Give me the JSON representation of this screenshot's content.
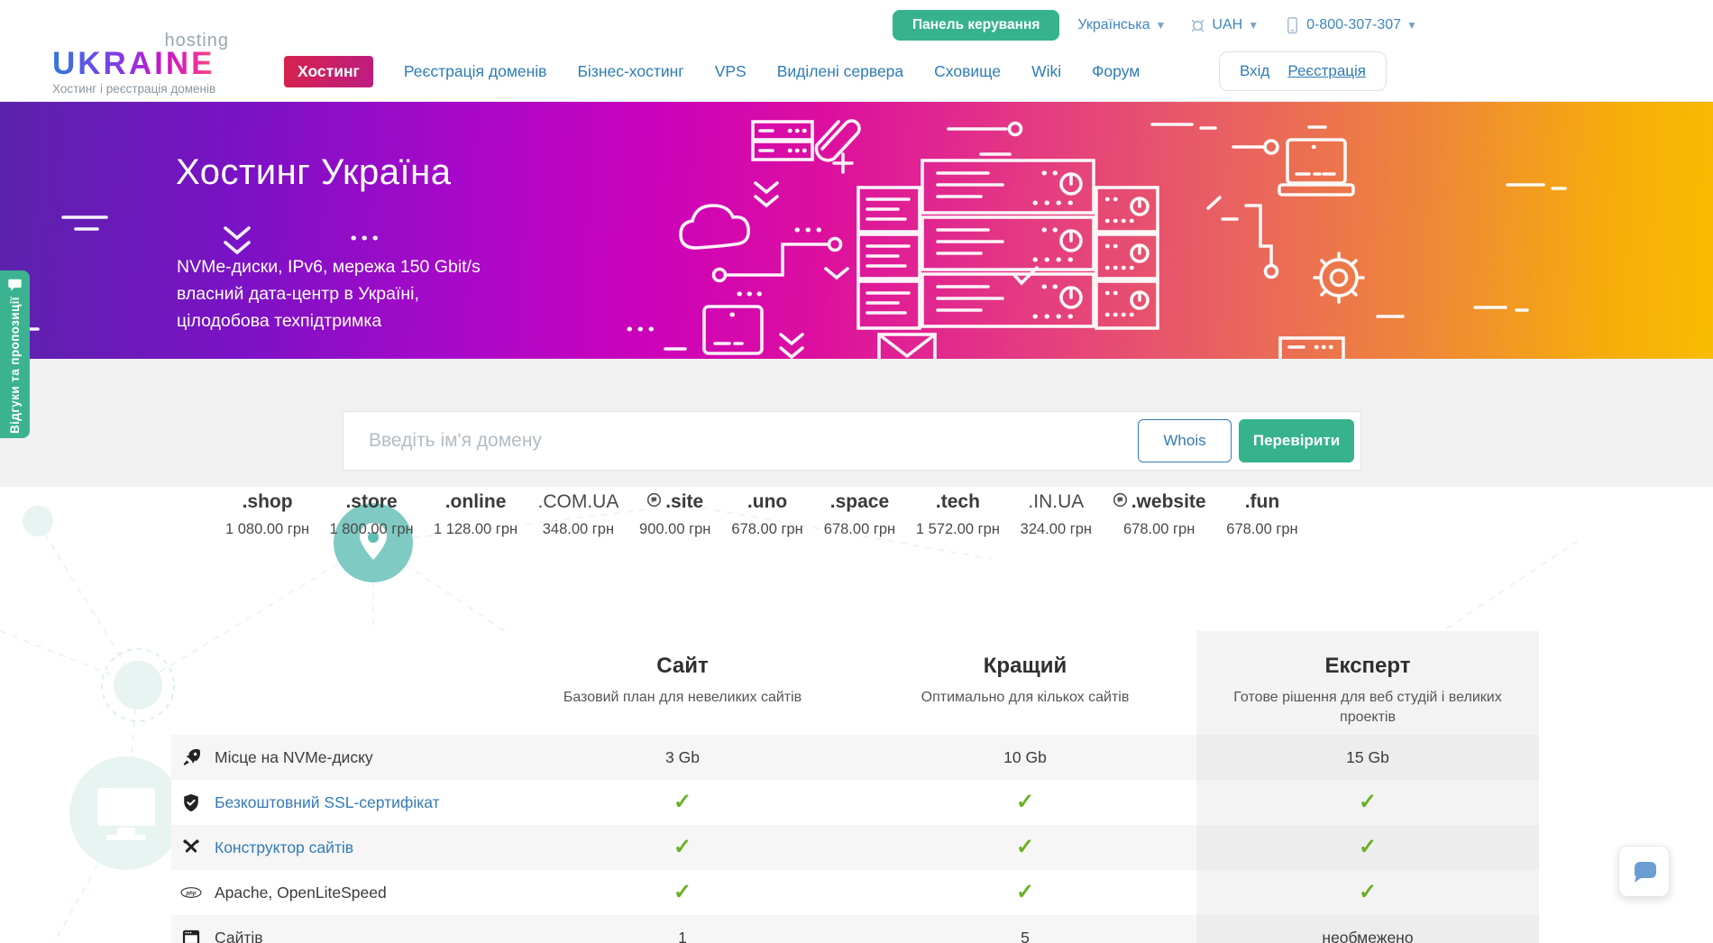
{
  "header": {
    "logo": {
      "top": "hosting",
      "name": "UKRAINE",
      "tagline": "Хостинг і реєстрація доменів"
    },
    "panel_button": "Панель керування",
    "language": "Українська",
    "currency": "UAH",
    "phone": "0-800-307-307",
    "login": "Вхід",
    "register": "Реєстрація",
    "nav": [
      {
        "label": "Хостинг",
        "active": true
      },
      {
        "label": "Реєстрація доменів",
        "active": false
      },
      {
        "label": "Бізнес-хостинг",
        "active": false
      },
      {
        "label": "VPS",
        "active": false
      },
      {
        "label": "Виділені сервера",
        "active": false
      },
      {
        "label": "Сховище",
        "active": false
      },
      {
        "label": "Wiki",
        "active": false
      },
      {
        "label": "Форум",
        "active": false
      }
    ]
  },
  "hero": {
    "title": "Хостинг Україна",
    "line1": "NVMe-диски, IPv6, мережа 150 Gbit/s",
    "line2": "власний дата-центр в Україні,",
    "line3": "цілодобова техпідтримка"
  },
  "feedback_tab": {
    "label": "Відгуки та пропозиції"
  },
  "search": {
    "placeholder": "Введіть ім'я домену",
    "whois_label": "Whois",
    "check_label": "Перевірити"
  },
  "domains": [
    {
      "tld": ".shop",
      "price": "1 080.00 грн",
      "icon": false,
      "plain": false
    },
    {
      "tld": ".store",
      "price": "1 800.00 грн",
      "icon": false,
      "plain": false
    },
    {
      "tld": ".online",
      "price": "1 128.00 грн",
      "icon": false,
      "plain": false
    },
    {
      "tld": ".COM.UA",
      "price": "348.00 грн",
      "icon": false,
      "plain": true
    },
    {
      "tld": ".site",
      "price": "900.00 грн",
      "icon": true,
      "plain": false
    },
    {
      "tld": ".uno",
      "price": "678.00 грн",
      "icon": false,
      "plain": false
    },
    {
      "tld": ".space",
      "price": "678.00 грн",
      "icon": false,
      "plain": false
    },
    {
      "tld": ".tech",
      "price": "1 572.00 грн",
      "icon": false,
      "plain": false
    },
    {
      "tld": ".IN.UA",
      "price": "324.00 грн",
      "icon": false,
      "plain": true
    },
    {
      "tld": ".website",
      "price": "678.00 грн",
      "icon": true,
      "plain": false
    },
    {
      "tld": ".fun",
      "price": "678.00 грн",
      "icon": false,
      "plain": false
    }
  ],
  "pricing": {
    "plans": [
      {
        "name": "Сайт",
        "desc": "Базовий план для невеликих сайтів"
      },
      {
        "name": "Кращий",
        "desc": "Оптимально для кількох сайтів"
      },
      {
        "name": "Експерт",
        "desc": "Готове рішення для веб студій і великих проектів"
      }
    ],
    "rows": [
      {
        "icon": "rocket-icon",
        "label": "Місце на NVMe-диску",
        "link": false,
        "values": [
          "3 Gb",
          "10 Gb",
          "15 Gb"
        ]
      },
      {
        "icon": "shield-check-icon",
        "label": "Безкоштовний SSL-сертифікат",
        "link": true,
        "values": [
          "CHECK",
          "CHECK",
          "CHECK"
        ]
      },
      {
        "icon": "tools-icon",
        "label": "Конструктор сайтів",
        "link": true,
        "values": [
          "CHECK",
          "CHECK",
          "CHECK"
        ]
      },
      {
        "icon": "php-icon",
        "label": "Apache, OpenLiteSpeed",
        "link": false,
        "values": [
          "CHECK",
          "CHECK",
          "CHECK"
        ]
      },
      {
        "icon": "browser-icon",
        "label": "Сайтів",
        "link": false,
        "values": [
          "1",
          "5",
          "необмежено"
        ]
      }
    ]
  },
  "colors": {
    "accent_green": "#36b38d",
    "link_blue": "#337ab7",
    "check_green": "#6ab023",
    "badge_gradient_start": "#d6224e",
    "badge_gradient_end": "#bd1d80",
    "banner_gradient_start": "#5a23ac",
    "banner_gradient_mid": "#dd0f9f",
    "banner_gradient_end": "#f8bc00"
  }
}
